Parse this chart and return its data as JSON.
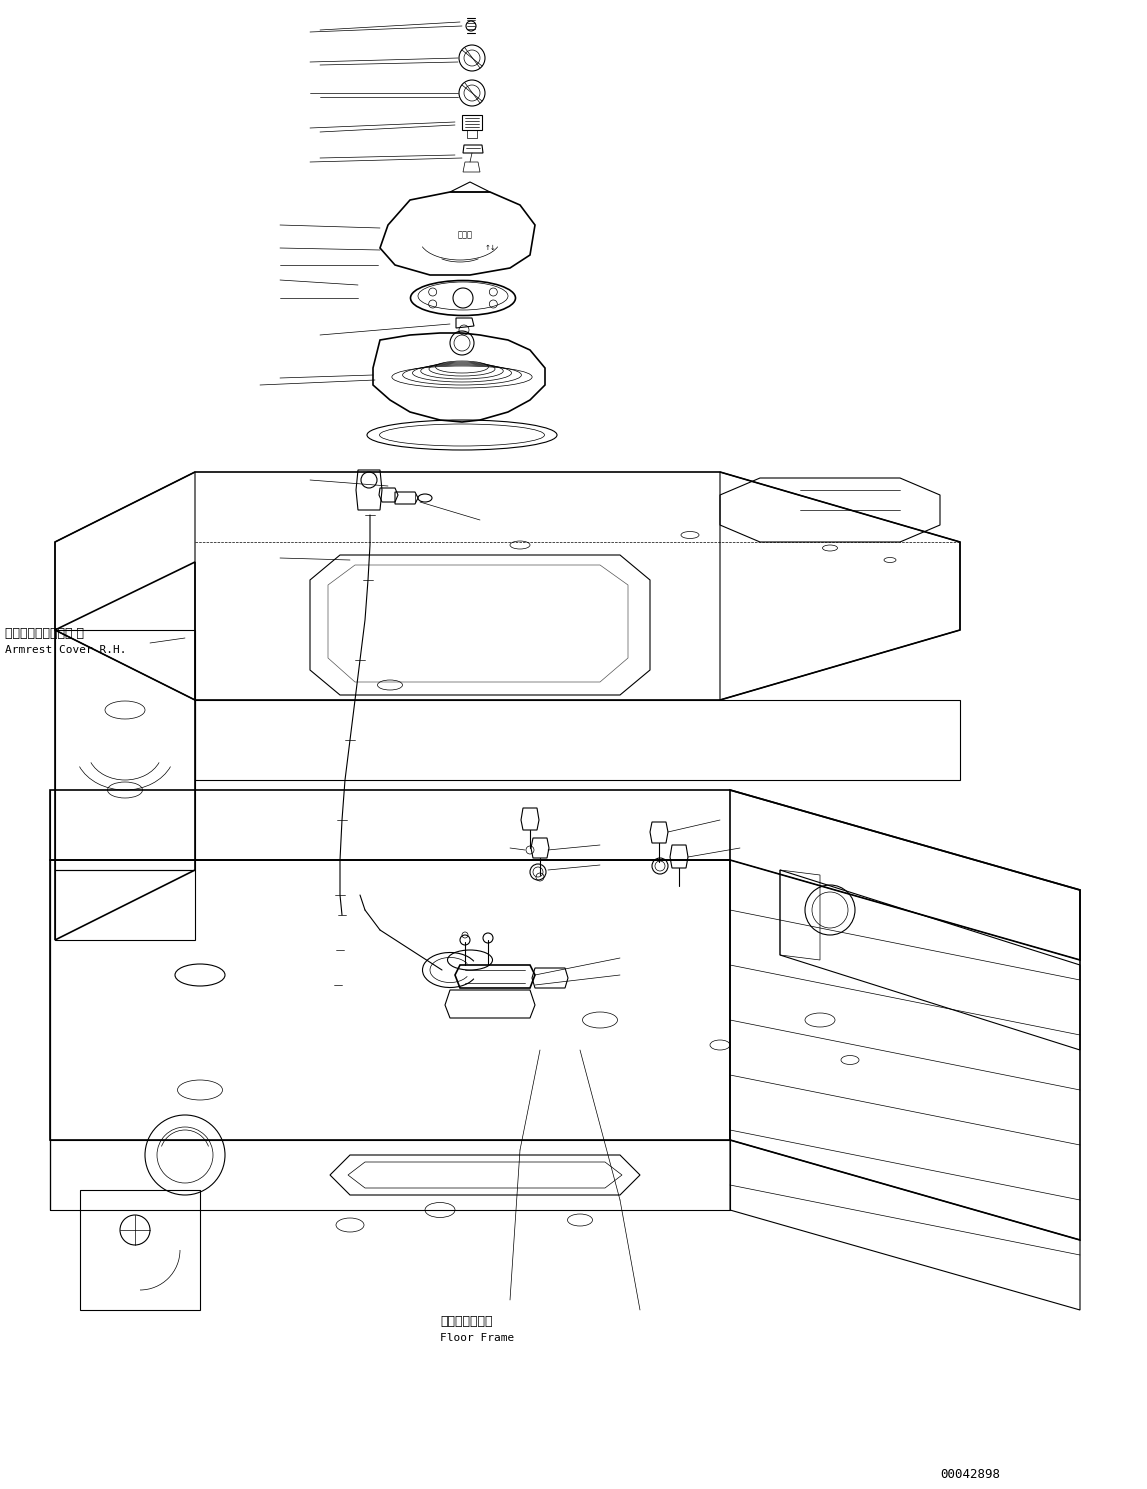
{
  "bg_color": "#ffffff",
  "line_color": "#000000",
  "text_color": "#000000",
  "fig_width": 11.47,
  "fig_height": 14.89,
  "dpi": 100,
  "part_number": "00042898",
  "label_armrest_jp": "アームレストカバー 右",
  "label_armrest_en": "Armrest Cover R.H.",
  "label_floor_jp": "フロアフレーム",
  "label_floor_en": "Floor Frame"
}
